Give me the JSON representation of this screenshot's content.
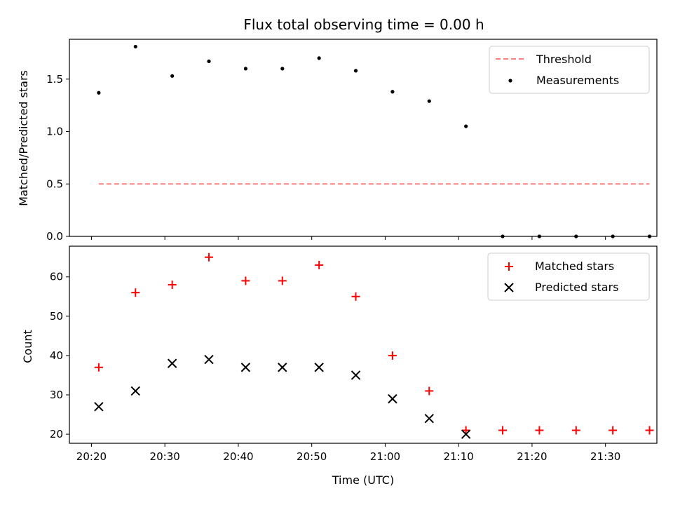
{
  "title": "Flux total observing time = 0.00 h",
  "xlabel": "Time (UTC)",
  "x_ticks": [
    "20:20",
    "20:30",
    "20:40",
    "20:50",
    "21:00",
    "21:10",
    "21:20",
    "21:30"
  ],
  "colors": {
    "threshold": "#ff7f7f",
    "measurements": "#000000",
    "matched": "#ff0000",
    "predicted": "#000000"
  },
  "chart_data": [
    {
      "type": "scatter",
      "ylabel": "Matched/Predicted stars",
      "y_ticks": [
        "0.0",
        "0.5",
        "1.0",
        "1.5"
      ],
      "ylim": [
        0,
        1.88
      ],
      "xlim": [
        "20:17",
        "21:37"
      ],
      "grid": false,
      "legend_position": "top-right",
      "series": [
        {
          "name": "Threshold",
          "style": "dashed-line",
          "x": [
            "20:21",
            "21:36"
          ],
          "values": [
            0.5,
            0.5
          ]
        },
        {
          "name": "Measurements",
          "style": "dot",
          "x": [
            "20:21",
            "20:26",
            "20:31",
            "20:36",
            "20:41",
            "20:46",
            "20:51",
            "20:56",
            "21:01",
            "21:06",
            "21:11",
            "21:16",
            "21:21",
            "21:26",
            "21:31",
            "21:36"
          ],
          "values": [
            1.37,
            1.81,
            1.53,
            1.67,
            1.6,
            1.6,
            1.7,
            1.58,
            1.38,
            1.29,
            1.05,
            0.0,
            0.0,
            0.0,
            0.0,
            0.0
          ]
        }
      ]
    },
    {
      "type": "scatter",
      "ylabel": "Count",
      "y_ticks": [
        "20",
        "30",
        "40",
        "50",
        "60"
      ],
      "ylim": [
        17.7,
        67.8
      ],
      "xlim": [
        "20:17",
        "21:37"
      ],
      "grid": false,
      "legend_position": "top-right",
      "series": [
        {
          "name": "Matched stars",
          "marker": "+",
          "x": [
            "20:21",
            "20:26",
            "20:31",
            "20:36",
            "20:41",
            "20:46",
            "20:51",
            "20:56",
            "21:01",
            "21:06",
            "21:11",
            "21:16",
            "21:21",
            "21:26",
            "21:31",
            "21:36"
          ],
          "values": [
            37,
            56,
            58,
            65,
            59,
            59,
            63,
            55,
            40,
            31,
            21,
            21,
            21,
            21,
            21,
            21
          ]
        },
        {
          "name": "Predicted stars",
          "marker": "x",
          "x": [
            "20:21",
            "20:26",
            "20:31",
            "20:36",
            "20:41",
            "20:46",
            "20:51",
            "20:56",
            "21:01",
            "21:06",
            "21:11"
          ],
          "values": [
            27,
            31,
            38,
            39,
            37,
            37,
            37,
            35,
            29,
            24,
            20
          ]
        }
      ]
    }
  ]
}
